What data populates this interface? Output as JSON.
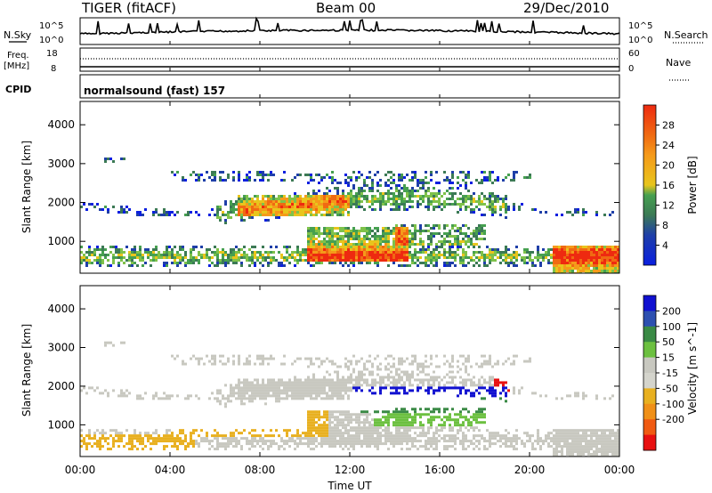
{
  "header": {
    "radar": "TIGER",
    "mode": "(fitACF)",
    "beam_label": "Beam 00",
    "date": "29/Dec/2010"
  },
  "strip_panels": {
    "nsky": {
      "left_label": "N.Sky",
      "tick_high": "10^5",
      "tick_low": "10^0",
      "right_label": "N.Search",
      "right_tick_high": "10^5",
      "right_tick_low": "10^0"
    },
    "freq": {
      "left_label_1": "Freq.",
      "left_label_2": "[MHz]",
      "tick_high": "18",
      "tick_low": "8",
      "right_label": "Nave",
      "right_tick_high": "60",
      "right_tick_low": "0"
    },
    "cpid": {
      "left_label": "CPID",
      "program": "normalsound (fast) 157"
    }
  },
  "colors": {
    "power_scale": [
      "#0a1fe0",
      "#1f3fa8",
      "#3c7a55",
      "#46a050",
      "#7fc24a",
      "#e8c51c",
      "#f59a1a",
      "#f06a12",
      "#ee2a10"
    ],
    "velocity_scale": [
      "#1010d0",
      "#2d50b0",
      "#3a8a45",
      "#6cc040",
      "#c8c8c0",
      "#d4d4cc",
      "#e8b020",
      "#f09018",
      "#f05a12",
      "#e81010"
    ]
  },
  "chart_data": [
    {
      "type": "heatmap",
      "name": "power",
      "xlabel": "",
      "ylabel": "Slant Range [km]",
      "x_ticks": [
        "00:00",
        "04:00",
        "08:00",
        "12:00",
        "16:00",
        "20:00",
        "00:00"
      ],
      "xlim_hours": [
        0,
        24
      ],
      "y_ticks": [
        "1000",
        "2000",
        "3000",
        "4000"
      ],
      "ylim_km": [
        180,
        4600
      ],
      "colorbar_label": "Power [dB]",
      "colorbar_ticks": [
        "4",
        "8",
        "12",
        "16",
        "20",
        "24",
        "28"
      ],
      "colorbar_range": [
        0,
        32
      ]
    },
    {
      "type": "heatmap",
      "name": "velocity",
      "xlabel": "Time UT",
      "ylabel": "Slant Range [km]",
      "x_ticks": [
        "00:00",
        "04:00",
        "08:00",
        "12:00",
        "16:00",
        "20:00",
        "00:00"
      ],
      "xlim_hours": [
        0,
        24
      ],
      "y_ticks": [
        "1000",
        "2000",
        "3000",
        "4000"
      ],
      "ylim_km": [
        180,
        4600
      ],
      "colorbar_label": "Velocity [m s^-1]",
      "colorbar_ticks": [
        "200",
        "100",
        "50",
        "15",
        "-15",
        "-50",
        "-100",
        "-200"
      ],
      "colorbar_range": [
        -250,
        250
      ]
    }
  ]
}
